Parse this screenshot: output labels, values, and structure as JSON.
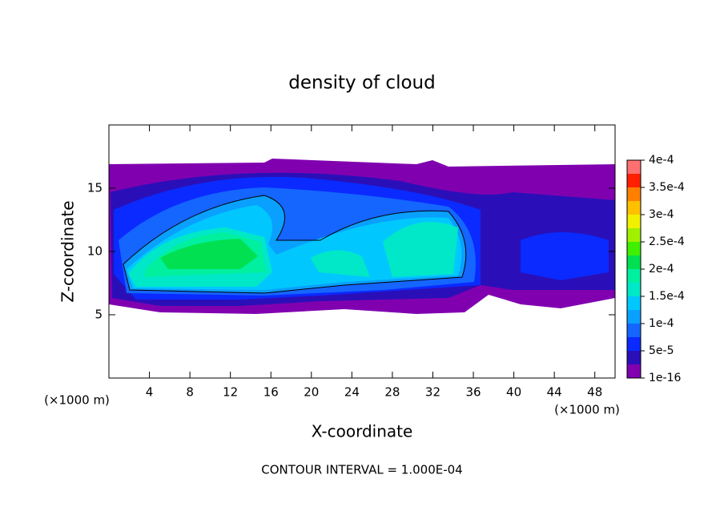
{
  "chart_data": {
    "type": "contour",
    "title": "density of cloud",
    "xlabel": "X-coordinate",
    "ylabel": "Z-coordinate",
    "x_unit": "(×1000 m)",
    "y_unit": "(×1000 m)",
    "annotation": "CONTOUR INTERVAL = 1.000E-04",
    "xlim": [
      0,
      50
    ],
    "xticks": [
      4,
      8,
      12,
      16,
      20,
      24,
      28,
      32,
      36,
      40,
      44,
      48
    ],
    "ylim": [
      0,
      20
    ],
    "yticks": [
      5,
      10,
      15
    ],
    "levels": [
      1e-16,
      2.5e-05,
      5e-05,
      7.5e-05,
      0.0001,
      0.000125,
      0.00015,
      0.000175,
      0.0002,
      0.000225,
      0.00025,
      0.000275,
      0.0003,
      0.000325,
      0.00035,
      0.000375,
      0.0004
    ],
    "colors": [
      "#8000b0",
      "#2a0fb8",
      "#0a2aff",
      "#1565ff",
      "#0aa0ff",
      "#00c8ff",
      "#00e8c8",
      "#00f0a0",
      "#00e050",
      "#40f000",
      "#a0f000",
      "#f0f000",
      "#ffc000",
      "#ff8000",
      "#ff2000",
      "#ff7070"
    ],
    "colorbar_ticks": [
      {
        "value": 1e-16,
        "label": "1e-16"
      },
      {
        "value": 5e-05,
        "label": "5e-5"
      },
      {
        "value": 0.0001,
        "label": "1e-4"
      },
      {
        "value": 0.00015,
        "label": "1.5e-4"
      },
      {
        "value": 0.0002,
        "label": "2e-4"
      },
      {
        "value": 0.00025,
        "label": "2.5e-4"
      },
      {
        "value": 0.0003,
        "label": "3e-4"
      },
      {
        "value": 0.00035,
        "label": "3.5e-4"
      },
      {
        "value": 0.0004,
        "label": "4e-4"
      }
    ]
  }
}
